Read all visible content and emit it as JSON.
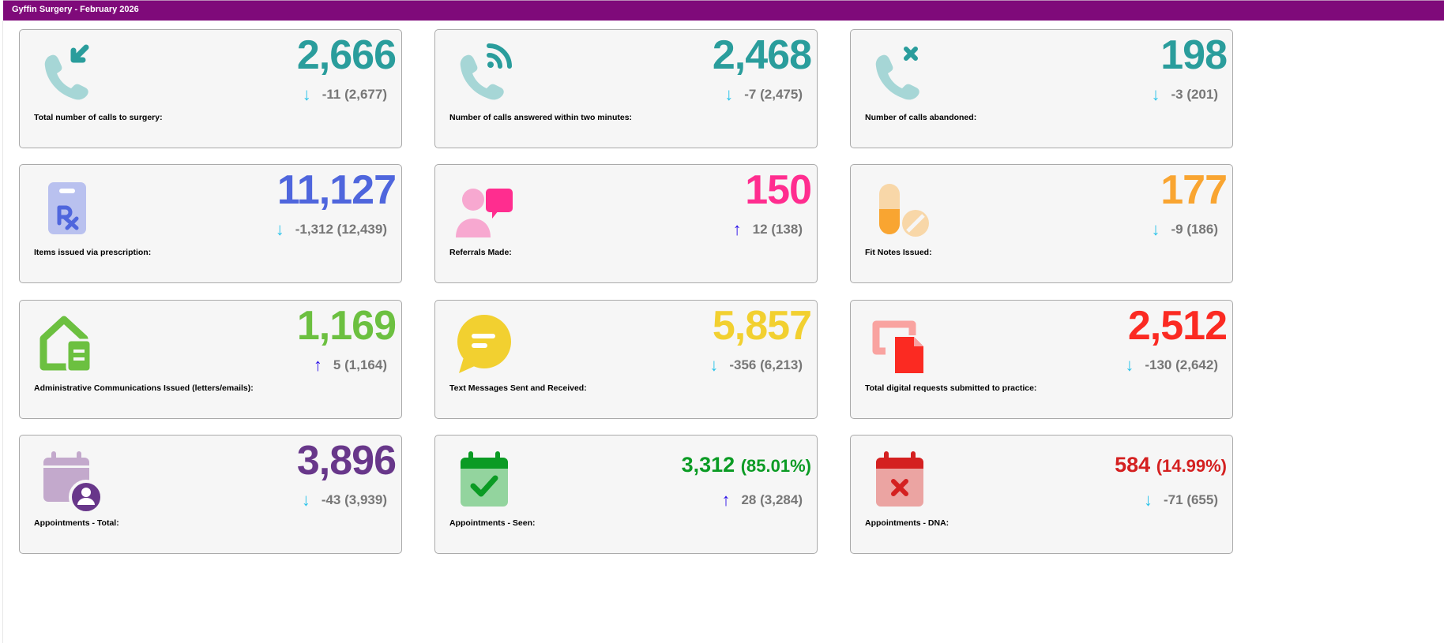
{
  "header": {
    "title": "Gyffin Surgery - February 2026"
  },
  "cards": [
    {
      "label": "Total number of calls to surgery:",
      "value": "2,666",
      "change": "-11",
      "previous": "(2,677)",
      "direction": "down",
      "color": "#2a9d9c",
      "icon": "phone-incoming-icon"
    },
    {
      "label": "Number of calls answered within two minutes:",
      "value": "2,468",
      "change": "-7",
      "previous": "(2,475)",
      "direction": "down",
      "color": "#2a9d9c",
      "icon": "phone-answered-icon"
    },
    {
      "label": "Number of calls abandoned:",
      "value": "198",
      "change": "-3",
      "previous": "(201)",
      "direction": "down",
      "color": "#2a9d9c",
      "icon": "phone-abandoned-icon"
    },
    {
      "label": "Items issued via prescription:",
      "value": "11,127",
      "change": "-1,312",
      "previous": "(12,439)",
      "direction": "down",
      "color": "#4f66dd",
      "icon": "prescription-clipboard-icon"
    },
    {
      "label": "Referrals Made:",
      "value": "150",
      "change": "12",
      "previous": "(138)",
      "direction": "up",
      "color": "#ff2d8f",
      "icon": "doctor-chat-icon"
    },
    {
      "label": "Fit Notes Issued:",
      "value": "177",
      "change": "-9",
      "previous": "(186)",
      "direction": "down",
      "color": "#f9a531",
      "icon": "pills-icon"
    },
    {
      "label": "Administrative Communications Issued (letters/emails):",
      "value": "1,169",
      "change": "5",
      "previous": "(1,164)",
      "direction": "up",
      "color": "#6cc040",
      "icon": "mail-house-icon"
    },
    {
      "label": "Text Messages Sent and Received:",
      "value": "5,857",
      "change": "-356",
      "previous": "(6,213)",
      "direction": "down",
      "color": "#f2d030",
      "icon": "chat-bubble-icon"
    },
    {
      "label": "Total digital requests submitted to practice:",
      "value": "2,512",
      "change": "-130",
      "previous": "(2,642)",
      "direction": "down",
      "color": "#fb2a22",
      "icon": "digital-request-icon"
    },
    {
      "label": "Appointments - Total:",
      "value": "3,896",
      "change": "-43",
      "previous": "(3,939)",
      "direction": "down",
      "color": "#68378a",
      "icon": "calendar-user-icon"
    },
    {
      "label": "Appointments - Seen:",
      "value": "3,312",
      "percent": "(85.01%)",
      "change": "28",
      "previous": "(3,284)",
      "direction": "up",
      "color": "#0b9b24",
      "icon": "calendar-check-icon"
    },
    {
      "label": "Appointments - DNA:",
      "value": "584",
      "percent": "(14.99%)",
      "change": "-71",
      "previous": "(655)",
      "direction": "down",
      "color": "#d42020",
      "icon": "calendar-cross-icon"
    }
  ],
  "arrows": {
    "down": "↓",
    "up": "↑"
  }
}
